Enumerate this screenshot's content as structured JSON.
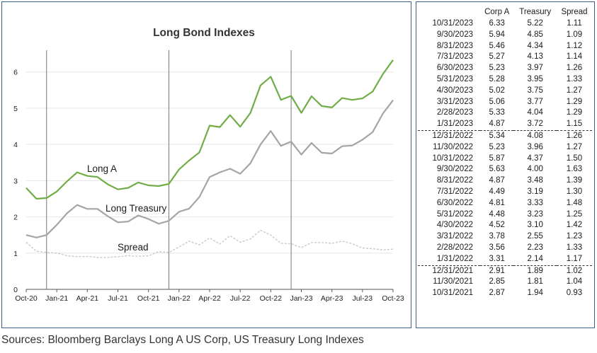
{
  "chart_data": {
    "type": "line",
    "title": "Long Bond Indexes",
    "x_tick_labels": [
      "Oct-20",
      "Jan-21",
      "Apr-21",
      "Jul-21",
      "Oct-21",
      "Jan-22",
      "Apr-22",
      "Jul-22",
      "Oct-22",
      "Jan-23",
      "Apr-23",
      "Jul-23",
      "Oct-23"
    ],
    "y_ticks": [
      0,
      1,
      2,
      3,
      4,
      5,
      6
    ],
    "ylim": [
      0,
      6.6
    ],
    "x_months": [
      "2020-10",
      "2020-11",
      "2020-12",
      "2021-01",
      "2021-02",
      "2021-03",
      "2021-04",
      "2021-05",
      "2021-06",
      "2021-07",
      "2021-08",
      "2021-09",
      "2021-10",
      "2021-11",
      "2021-12",
      "2022-01",
      "2022-02",
      "2022-03",
      "2022-04",
      "2022-05",
      "2022-06",
      "2022-07",
      "2022-08",
      "2022-09",
      "2022-10",
      "2022-11",
      "2022-12",
      "2023-01",
      "2023-02",
      "2023-03",
      "2023-04",
      "2023-05",
      "2023-06",
      "2023-07",
      "2023-08",
      "2023-09",
      "2023-10"
    ],
    "vertical_markers": [
      "2020-12",
      "2021-12",
      "2022-12"
    ],
    "series": [
      {
        "name": "Long A",
        "color": "#70ad47",
        "style": "solid",
        "values": [
          2.8,
          2.5,
          2.52,
          2.7,
          2.98,
          3.23,
          3.13,
          3.1,
          2.9,
          2.76,
          2.8,
          2.95,
          2.87,
          2.85,
          2.91,
          3.31,
          3.56,
          3.78,
          4.52,
          4.48,
          4.81,
          4.49,
          4.87,
          5.63,
          5.87,
          5.23,
          5.34,
          4.87,
          5.33,
          5.06,
          5.02,
          5.28,
          5.23,
          5.27,
          5.46,
          5.94,
          6.33
        ]
      },
      {
        "name": "Long Treasury",
        "color": "#a5a5a5",
        "style": "solid",
        "values": [
          1.5,
          1.43,
          1.5,
          1.78,
          2.1,
          2.33,
          2.22,
          2.22,
          2.02,
          1.85,
          1.87,
          2.04,
          1.94,
          1.81,
          1.89,
          2.14,
          2.23,
          2.55,
          3.1,
          3.23,
          3.33,
          3.19,
          3.48,
          4.0,
          4.37,
          3.96,
          4.08,
          3.72,
          4.04,
          3.77,
          3.75,
          3.95,
          3.97,
          4.13,
          4.34,
          4.85,
          5.22
        ]
      },
      {
        "name": "Spread",
        "color": "#c9c9c9",
        "style": "dashed",
        "values": [
          1.3,
          1.05,
          1.02,
          1.0,
          0.93,
          0.9,
          0.91,
          0.88,
          0.88,
          0.9,
          0.93,
          0.91,
          0.93,
          1.04,
          1.02,
          1.17,
          1.33,
          1.23,
          1.42,
          1.25,
          1.48,
          1.3,
          1.39,
          1.63,
          1.5,
          1.27,
          1.26,
          1.15,
          1.29,
          1.29,
          1.27,
          1.33,
          1.26,
          1.14,
          1.12,
          1.09,
          1.11
        ]
      }
    ]
  },
  "table": {
    "headers": [
      "",
      "Corp A",
      "Treasury",
      "Spread"
    ],
    "rows": [
      [
        "10/31/2023",
        "6.33",
        "5.22",
        "1.11"
      ],
      [
        "9/30/2023",
        "5.94",
        "4.85",
        "1.09"
      ],
      [
        "8/31/2023",
        "5.46",
        "4.34",
        "1.12"
      ],
      [
        "7/31/2023",
        "5.27",
        "4.13",
        "1.14"
      ],
      [
        "6/30/2023",
        "5.23",
        "3.97",
        "1.26"
      ],
      [
        "5/31/2023",
        "5.28",
        "3.95",
        "1.33"
      ],
      [
        "4/30/2023",
        "5.02",
        "3.75",
        "1.27"
      ],
      [
        "3/31/2023",
        "5.06",
        "3.77",
        "1.29"
      ],
      [
        "2/28/2023",
        "5.33",
        "4.04",
        "1.29"
      ],
      [
        "1/31/2023",
        "4.87",
        "3.72",
        "1.15"
      ],
      [
        "12/31/2022",
        "5.34",
        "4.08",
        "1.26"
      ],
      [
        "11/30/2022",
        "5.23",
        "3.96",
        "1.27"
      ],
      [
        "10/31/2022",
        "5.87",
        "4.37",
        "1.50"
      ],
      [
        "9/30/2022",
        "5.63",
        "4.00",
        "1.63"
      ],
      [
        "8/31/2022",
        "4.87",
        "3.48",
        "1.39"
      ],
      [
        "7/31/2022",
        "4.49",
        "3.19",
        "1.30"
      ],
      [
        "6/30/2022",
        "4.81",
        "3.33",
        "1.48"
      ],
      [
        "5/31/2022",
        "4.48",
        "3.23",
        "1.25"
      ],
      [
        "4/30/2022",
        "4.52",
        "3.10",
        "1.42"
      ],
      [
        "3/31/2022",
        "3.78",
        "2.55",
        "1.23"
      ],
      [
        "2/28/2022",
        "3.56",
        "2.23",
        "1.33"
      ],
      [
        "1/31/2022",
        "3.31",
        "2.14",
        "1.17"
      ],
      [
        "12/31/2021",
        "2.91",
        "1.89",
        "1.02"
      ],
      [
        "11/30/2021",
        "2.85",
        "1.81",
        "1.04"
      ],
      [
        "10/31/2021",
        "2.87",
        "1.94",
        "0.93"
      ]
    ]
  },
  "source_note": "Sources: Bloomberg Barclays Long A US Corp, US Treasury Long Indexes"
}
